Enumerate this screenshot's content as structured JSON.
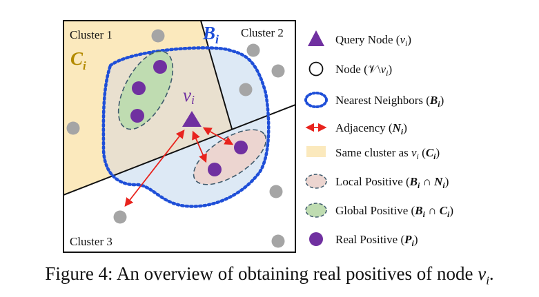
{
  "diagram": {
    "cluster_labels": {
      "c1": "Cluster 1",
      "c2": "Cluster 2",
      "c3": "Cluster 3"
    },
    "set_labels": {
      "Ci_letter": "C",
      "Ci_sub": "i",
      "Bi_letter": "B",
      "Bi_sub": "i",
      "vi_letter": "v",
      "vi_sub": "i"
    },
    "colors": {
      "cluster1_fill": "#fbe9bd",
      "cluster2_fill": "#dde9f5",
      "overlap_fill": "#e9e0cf",
      "nearest_border": "#1f4fd8",
      "global_fill": "#bfdcb1",
      "local_fill": "#ecd5d0",
      "ellipse_border": "#3e5a6c",
      "real_positive": "#7030a0",
      "gray_node": "#a5a5a5",
      "adjacency": "#e8231d",
      "cluster_label_c": "#b38a00",
      "bi_label": "#1f4fd8"
    }
  },
  "legend": {
    "items": [
      {
        "id": "query",
        "icon": "purple-triangle-icon",
        "text": "Query Node (",
        "math": "vi",
        "tail": ")"
      },
      {
        "id": "node",
        "icon": "hollow-circle-icon",
        "text": "Node (",
        "math": "𝒱\\vi",
        "tail": ")"
      },
      {
        "id": "nearest",
        "icon": "dotted-ellipse-icon",
        "text": "Nearest Neighbors (",
        "math": "Bi",
        "tail": ")"
      },
      {
        "id": "adjacency",
        "icon": "double-arrow-icon",
        "text": "Adjacency (",
        "math": "Ni",
        "tail": ")"
      },
      {
        "id": "same",
        "icon": "yellow-rect-icon",
        "text": "Same cluster as ",
        "math": "vi (Ci)",
        "tail": ""
      },
      {
        "id": "local",
        "icon": "pink-ellipse-icon",
        "text": "Local Positive (",
        "math": "Bi ∩ Ni",
        "tail": ")"
      },
      {
        "id": "global",
        "icon": "green-ellipse-icon",
        "text": "Global Positive (",
        "math": "Bi ∩ Ci",
        "tail": ")"
      },
      {
        "id": "real",
        "icon": "purple-dot-icon",
        "text": "Real Positive (",
        "math": "Pi",
        "tail": ")"
      }
    ]
  },
  "caption": {
    "prefix": "Figure 4: An overview of obtaining real positives of node ",
    "var": "v",
    "sub": "i",
    "suffix": "."
  }
}
